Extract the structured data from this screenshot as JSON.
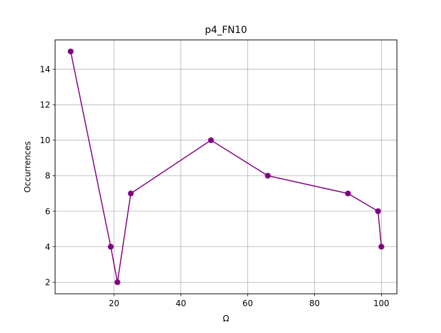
{
  "chart_data": {
    "type": "line",
    "title": "p4_FN10",
    "xlabel": "Ω",
    "ylabel": "Occurrences",
    "xlim": [
      2.35,
      104.65
    ],
    "ylim": [
      1.35,
      15.65
    ],
    "xticks": [
      20,
      40,
      60,
      80,
      100
    ],
    "yticks": [
      2,
      4,
      6,
      8,
      10,
      12,
      14
    ],
    "xtick_labels": [
      "20",
      "40",
      "60",
      "80",
      "100"
    ],
    "ytick_labels": [
      "2",
      "4",
      "6",
      "8",
      "10",
      "12",
      "14"
    ],
    "grid": true,
    "series": [
      {
        "x": [
          7,
          19,
          21,
          25,
          49,
          66,
          90,
          99,
          100
        ],
        "y": [
          15,
          4,
          2,
          7,
          10,
          8,
          7,
          6,
          4
        ],
        "color": "#800080",
        "marker": "circle"
      }
    ]
  }
}
